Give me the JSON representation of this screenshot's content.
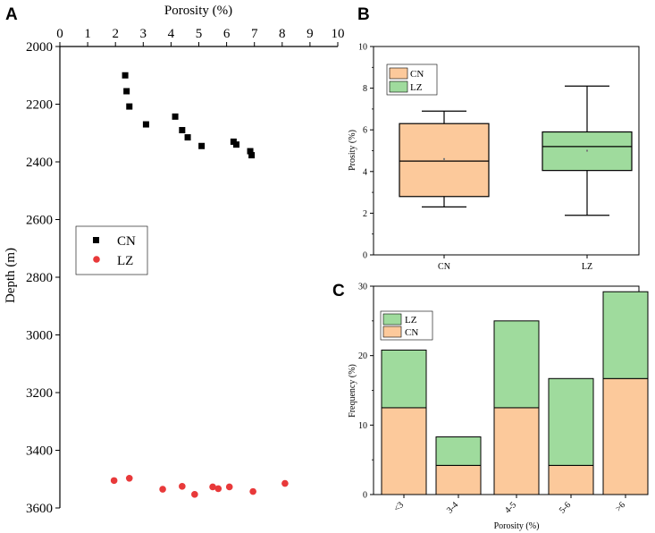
{
  "colors": {
    "cn_point": "#000000",
    "lz_point": "#e8393a",
    "cn_fill": "#fcc99b",
    "lz_fill": "#9fdb9d",
    "axis": "#000000"
  },
  "panels": {
    "a": {
      "letter": "A"
    },
    "b": {
      "letter": "B"
    },
    "c": {
      "letter": "C"
    }
  },
  "chart_data": [
    {
      "id": "a",
      "type": "scatter",
      "title": "",
      "xlabel": "Porosity (%)",
      "ylabel": "Depth (m)",
      "xlim": [
        0,
        10
      ],
      "ylim": [
        2000,
        3600
      ],
      "y_inverted": true,
      "x_axis_position": "top",
      "xticks": [
        "0",
        "1",
        "2",
        "3",
        "4",
        "5",
        "6",
        "7",
        "8",
        "9",
        "10"
      ],
      "yticks": [
        "2000",
        "2200",
        "2400",
        "2600",
        "2800",
        "3000",
        "3200",
        "3400",
        "3600"
      ],
      "legend_position": "middle-left",
      "series": [
        {
          "name": "CN",
          "marker": "square",
          "points": [
            [
              2.35,
              2100
            ],
            [
              2.4,
              2155
            ],
            [
              2.5,
              2208
            ],
            [
              3.1,
              2270
            ],
            [
              4.15,
              2243
            ],
            [
              4.4,
              2290
            ],
            [
              4.6,
              2315
            ],
            [
              5.1,
              2345
            ],
            [
              6.25,
              2330
            ],
            [
              6.35,
              2340
            ],
            [
              6.85,
              2363
            ],
            [
              6.9,
              2377
            ]
          ]
        },
        {
          "name": "LZ",
          "marker": "circle",
          "points": [
            [
              1.95,
              3505
            ],
            [
              2.5,
              3497
            ],
            [
              3.7,
              3535
            ],
            [
              4.4,
              3525
            ],
            [
              4.85,
              3553
            ],
            [
              5.5,
              3527
            ],
            [
              5.7,
              3533
            ],
            [
              6.1,
              3527
            ],
            [
              6.95,
              3543
            ],
            [
              8.1,
              3515
            ]
          ]
        }
      ]
    },
    {
      "id": "b",
      "type": "box",
      "title": "",
      "xlabel": "",
      "ylabel": "Prosity (%)",
      "ylim": [
        0,
        10
      ],
      "yticks": [
        "0",
        "2",
        "4",
        "6",
        "8",
        "10"
      ],
      "categories": [
        "CN",
        "LZ"
      ],
      "legend_position": "top-left",
      "boxes": [
        {
          "name": "CN",
          "min": 2.3,
          "q1": 2.8,
          "median": 4.5,
          "q3": 6.3,
          "max": 6.9,
          "mean": 4.6
        },
        {
          "name": "LZ",
          "min": 1.9,
          "q1": 4.05,
          "median": 5.2,
          "q3": 5.9,
          "max": 8.1,
          "mean": 5.0
        }
      ]
    },
    {
      "id": "c",
      "type": "bar",
      "stacked": true,
      "title": "",
      "xlabel": "Porosity (%)",
      "ylabel": "Frequency (%)",
      "ylim": [
        0,
        30
      ],
      "yticks": [
        "0",
        "10",
        "20",
        "30"
      ],
      "categories": [
        "<3",
        "3-4",
        "4-5",
        "5-6",
        ">6"
      ],
      "legend_position": "top-left",
      "legend_order": [
        "LZ",
        "CN"
      ],
      "series": [
        {
          "name": "CN",
          "values": [
            12.5,
            4.2,
            12.5,
            4.2,
            16.7
          ]
        },
        {
          "name": "LZ",
          "values": [
            8.3,
            4.1,
            12.5,
            12.5,
            12.5
          ]
        }
      ]
    }
  ]
}
